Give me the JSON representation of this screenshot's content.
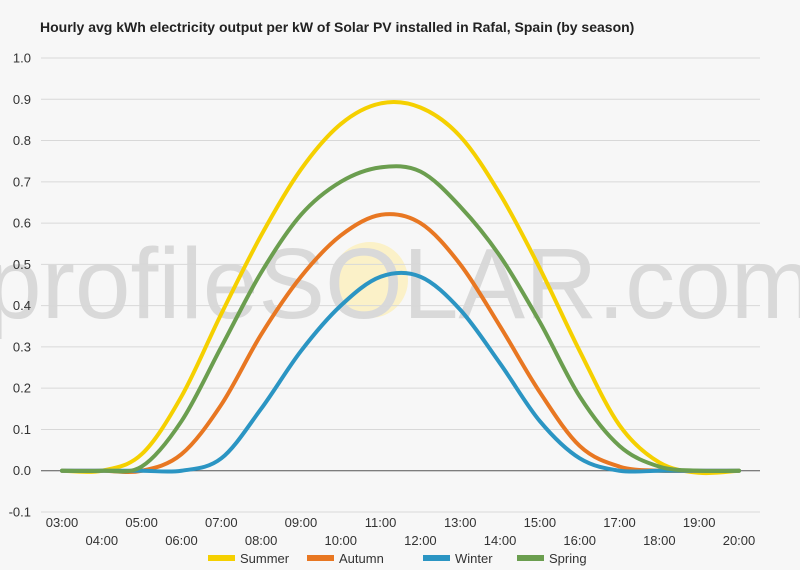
{
  "chart_data": {
    "type": "line",
    "title": "Hourly avg kWh electricity output per kW of Solar PV installed in Rafal, Spain (by season)",
    "xlabel": "",
    "ylabel": "",
    "ylim": [
      -0.1,
      1.0
    ],
    "yticks": [
      "1.0",
      "0.9",
      "0.8",
      "0.7",
      "0.6",
      "0.5",
      "0.4",
      "0.3",
      "0.2",
      "0.1",
      "0.0",
      "-0.1"
    ],
    "x": [
      3,
      4,
      5,
      6,
      7,
      8,
      9,
      10,
      11,
      12,
      13,
      14,
      15,
      16,
      17,
      18,
      19,
      20
    ],
    "xticks": [
      "03:00",
      "04:00",
      "05:00",
      "06:00",
      "07:00",
      "08:00",
      "09:00",
      "10:00",
      "11:00",
      "12:00",
      "13:00",
      "14:00",
      "15:00",
      "16:00",
      "17:00",
      "18:00",
      "19:00",
      "20:00"
    ],
    "grid": true,
    "legend_position": "bottom",
    "series": [
      {
        "name": "Summer",
        "color": "#f5d000",
        "values": [
          0.0,
          0.0,
          0.04,
          0.18,
          0.38,
          0.57,
          0.73,
          0.84,
          0.89,
          0.88,
          0.81,
          0.67,
          0.49,
          0.29,
          0.11,
          0.02,
          -0.005,
          0.0
        ]
      },
      {
        "name": "Autumn",
        "color": "#e87722",
        "values": [
          0.0,
          0.0,
          0.0,
          0.04,
          0.16,
          0.33,
          0.47,
          0.57,
          0.62,
          0.6,
          0.5,
          0.35,
          0.19,
          0.06,
          0.01,
          0.0,
          0.0,
          0.0
        ]
      },
      {
        "name": "Winter",
        "color": "#2b95c3",
        "values": [
          0.0,
          0.0,
          0.0,
          0.0,
          0.03,
          0.15,
          0.29,
          0.4,
          0.47,
          0.47,
          0.39,
          0.26,
          0.12,
          0.03,
          0.0,
          0.0,
          0.0,
          0.0
        ]
      },
      {
        "name": "Spring",
        "color": "#6b9e4f",
        "values": [
          0.0,
          0.0,
          0.01,
          0.12,
          0.3,
          0.48,
          0.62,
          0.7,
          0.735,
          0.725,
          0.64,
          0.52,
          0.36,
          0.18,
          0.06,
          0.01,
          0.0,
          0.0
        ]
      }
    ]
  },
  "watermark": "profileSOLAR.com"
}
